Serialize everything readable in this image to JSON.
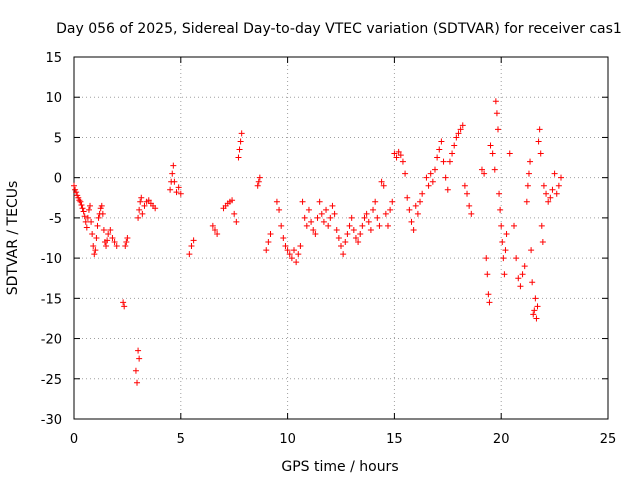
{
  "chart_data": {
    "type": "scatter",
    "title": "Day 056 of 2025, Sidereal Day-to-day VTEC variation (SDTVAR) for receiver cas1",
    "xlabel": "GPS time / hours",
    "ylabel": "SDTVAR / TECUs",
    "xlim": [
      0,
      25
    ],
    "ylim": [
      -30,
      15
    ],
    "xticks": [
      0,
      5,
      10,
      15,
      20,
      25
    ],
    "yticks": [
      -30,
      -25,
      -20,
      -15,
      -10,
      -5,
      0,
      5,
      10,
      15
    ],
    "grid": true,
    "marker": "plus",
    "color": "#ff0000",
    "series": [
      {
        "name": "SDTVAR",
        "points": [
          [
            0.0,
            -1.0
          ],
          [
            0.05,
            -1.5
          ],
          [
            0.1,
            -1.8
          ],
          [
            0.15,
            -2.2
          ],
          [
            0.2,
            -2.5
          ],
          [
            0.25,
            -2.8
          ],
          [
            0.3,
            -3.0
          ],
          [
            0.35,
            -3.4
          ],
          [
            0.4,
            -3.8
          ],
          [
            0.45,
            -4.2
          ],
          [
            0.5,
            -4.8
          ],
          [
            0.55,
            -5.5
          ],
          [
            0.6,
            -6.2
          ],
          [
            0.65,
            -5.0
          ],
          [
            0.7,
            -4.0
          ],
          [
            0.75,
            -3.5
          ],
          [
            0.8,
            -5.5
          ],
          [
            0.85,
            -7.0
          ],
          [
            0.9,
            -8.5
          ],
          [
            0.95,
            -9.5
          ],
          [
            1.0,
            -9.0
          ],
          [
            1.05,
            -7.5
          ],
          [
            1.1,
            -6.0
          ],
          [
            1.15,
            -5.0
          ],
          [
            1.2,
            -4.5
          ],
          [
            1.25,
            -3.8
          ],
          [
            1.3,
            -3.5
          ],
          [
            1.35,
            -4.5
          ],
          [
            1.4,
            -6.5
          ],
          [
            1.45,
            -8.0
          ],
          [
            1.5,
            -8.5
          ],
          [
            1.55,
            -7.8
          ],
          [
            1.6,
            -7.0
          ],
          [
            1.7,
            -6.5
          ],
          [
            1.8,
            -7.5
          ],
          [
            1.9,
            -8.0
          ],
          [
            2.0,
            -8.5
          ],
          [
            2.3,
            -15.5
          ],
          [
            2.35,
            -16.0
          ],
          [
            2.4,
            -8.5
          ],
          [
            2.45,
            -8.0
          ],
          [
            2.5,
            -7.5
          ],
          [
            2.9,
            -24.0
          ],
          [
            2.95,
            -25.5
          ],
          [
            3.0,
            -21.5
          ],
          [
            3.05,
            -22.5
          ],
          [
            3.0,
            -5.0
          ],
          [
            3.05,
            -4.0
          ],
          [
            3.1,
            -3.0
          ],
          [
            3.15,
            -2.5
          ],
          [
            3.2,
            -4.5
          ],
          [
            3.3,
            -3.5
          ],
          [
            3.4,
            -3.0
          ],
          [
            3.5,
            -2.8
          ],
          [
            3.6,
            -3.2
          ],
          [
            3.7,
            -3.5
          ],
          [
            3.8,
            -3.8
          ],
          [
            4.5,
            -1.5
          ],
          [
            4.55,
            -0.5
          ],
          [
            4.6,
            0.5
          ],
          [
            4.65,
            1.5
          ],
          [
            4.7,
            -0.5
          ],
          [
            4.8,
            -1.8
          ],
          [
            4.9,
            -1.2
          ],
          [
            5.0,
            -2.0
          ],
          [
            5.4,
            -9.5
          ],
          [
            5.5,
            -8.5
          ],
          [
            5.6,
            -7.8
          ],
          [
            6.5,
            -6.0
          ],
          [
            6.6,
            -6.5
          ],
          [
            6.7,
            -7.0
          ],
          [
            7.0,
            -3.8
          ],
          [
            7.1,
            -3.5
          ],
          [
            7.2,
            -3.2
          ],
          [
            7.3,
            -3.0
          ],
          [
            7.4,
            -2.8
          ],
          [
            7.5,
            -4.5
          ],
          [
            7.6,
            -5.5
          ],
          [
            7.7,
            2.5
          ],
          [
            7.75,
            3.5
          ],
          [
            7.8,
            4.5
          ],
          [
            7.85,
            5.5
          ],
          [
            8.6,
            -1.0
          ],
          [
            8.65,
            -0.5
          ],
          [
            8.7,
            0.0
          ],
          [
            9.0,
            -9.0
          ],
          [
            9.1,
            -8.0
          ],
          [
            9.2,
            -7.0
          ],
          [
            9.5,
            -3.0
          ],
          [
            9.6,
            -4.0
          ],
          [
            9.7,
            -6.0
          ],
          [
            9.8,
            -7.5
          ],
          [
            9.9,
            -8.5
          ],
          [
            10.0,
            -9.0
          ],
          [
            10.1,
            -9.5
          ],
          [
            10.2,
            -10.0
          ],
          [
            10.3,
            -9.0
          ],
          [
            10.4,
            -10.5
          ],
          [
            10.5,
            -9.5
          ],
          [
            10.6,
            -8.5
          ],
          [
            10.7,
            -3.0
          ],
          [
            10.8,
            -5.0
          ],
          [
            10.9,
            -6.0
          ],
          [
            11.0,
            -4.0
          ],
          [
            11.1,
            -5.5
          ],
          [
            11.2,
            -6.5
          ],
          [
            11.3,
            -7.0
          ],
          [
            11.4,
            -5.0
          ],
          [
            11.5,
            -3.0
          ],
          [
            11.6,
            -4.5
          ],
          [
            11.7,
            -5.5
          ],
          [
            11.8,
            -4.0
          ],
          [
            11.9,
            -6.0
          ],
          [
            12.0,
            -5.0
          ],
          [
            12.1,
            -3.5
          ],
          [
            12.2,
            -4.5
          ],
          [
            12.3,
            -6.5
          ],
          [
            12.4,
            -7.5
          ],
          [
            12.5,
            -8.5
          ],
          [
            12.6,
            -9.5
          ],
          [
            12.7,
            -8.0
          ],
          [
            12.8,
            -7.0
          ],
          [
            12.9,
            -6.0
          ],
          [
            13.0,
            -5.0
          ],
          [
            13.1,
            -6.5
          ],
          [
            13.2,
            -7.5
          ],
          [
            13.3,
            -8.0
          ],
          [
            13.4,
            -7.0
          ],
          [
            13.5,
            -6.0
          ],
          [
            13.6,
            -5.0
          ],
          [
            13.7,
            -4.5
          ],
          [
            13.8,
            -5.5
          ],
          [
            13.9,
            -6.5
          ],
          [
            14.0,
            -4.0
          ],
          [
            14.1,
            -3.0
          ],
          [
            14.2,
            -5.0
          ],
          [
            14.3,
            -6.0
          ],
          [
            14.4,
            -0.5
          ],
          [
            14.5,
            -1.0
          ],
          [
            14.6,
            -4.5
          ],
          [
            14.7,
            -6.0
          ],
          [
            14.8,
            -4.0
          ],
          [
            14.9,
            -3.0
          ],
          [
            15.0,
            3.0
          ],
          [
            15.1,
            2.5
          ],
          [
            15.2,
            3.2
          ],
          [
            15.3,
            2.8
          ],
          [
            15.4,
            2.0
          ],
          [
            15.5,
            0.5
          ],
          [
            15.6,
            -2.5
          ],
          [
            15.7,
            -4.0
          ],
          [
            15.8,
            -5.5
          ],
          [
            15.9,
            -6.5
          ],
          [
            16.0,
            -3.5
          ],
          [
            16.1,
            -4.5
          ],
          [
            16.2,
            -3.0
          ],
          [
            16.3,
            -2.0
          ],
          [
            16.5,
            0.0
          ],
          [
            16.6,
            -1.0
          ],
          [
            16.7,
            0.5
          ],
          [
            16.8,
            -0.5
          ],
          [
            16.9,
            1.0
          ],
          [
            17.0,
            2.5
          ],
          [
            17.1,
            3.5
          ],
          [
            17.2,
            4.5
          ],
          [
            17.3,
            2.0
          ],
          [
            17.4,
            0.0
          ],
          [
            17.5,
            -1.5
          ],
          [
            17.6,
            2.0
          ],
          [
            17.7,
            3.0
          ],
          [
            17.8,
            4.0
          ],
          [
            17.9,
            5.0
          ],
          [
            18.0,
            5.5
          ],
          [
            18.1,
            6.0
          ],
          [
            18.2,
            6.5
          ],
          [
            18.3,
            -1.0
          ],
          [
            18.4,
            -2.0
          ],
          [
            18.5,
            -3.5
          ],
          [
            18.6,
            -4.5
          ],
          [
            19.1,
            1.0
          ],
          [
            19.2,
            0.5
          ],
          [
            19.3,
            -10.0
          ],
          [
            19.35,
            -12.0
          ],
          [
            19.4,
            -14.5
          ],
          [
            19.45,
            -15.5
          ],
          [
            19.5,
            4.0
          ],
          [
            19.6,
            3.0
          ],
          [
            19.7,
            1.0
          ],
          [
            19.75,
            9.5
          ],
          [
            19.8,
            8.0
          ],
          [
            19.85,
            6.0
          ],
          [
            19.9,
            -2.0
          ],
          [
            19.95,
            -4.0
          ],
          [
            20.0,
            -6.0
          ],
          [
            20.05,
            -8.0
          ],
          [
            20.1,
            -10.0
          ],
          [
            20.15,
            -12.0
          ],
          [
            20.2,
            -9.0
          ],
          [
            20.25,
            -7.0
          ],
          [
            20.4,
            3.0
          ],
          [
            20.6,
            -6.0
          ],
          [
            20.7,
            -10.0
          ],
          [
            20.8,
            -12.5
          ],
          [
            20.9,
            -13.5
          ],
          [
            21.0,
            -12.0
          ],
          [
            21.1,
            -11.0
          ],
          [
            21.2,
            -3.0
          ],
          [
            21.25,
            -1.0
          ],
          [
            21.3,
            0.5
          ],
          [
            21.35,
            2.0
          ],
          [
            21.4,
            -9.0
          ],
          [
            21.45,
            -13.0
          ],
          [
            21.5,
            -17.0
          ],
          [
            21.55,
            -16.5
          ],
          [
            21.6,
            -15.0
          ],
          [
            21.65,
            -17.5
          ],
          [
            21.7,
            -16.0
          ],
          [
            21.75,
            4.5
          ],
          [
            21.8,
            6.0
          ],
          [
            21.85,
            3.0
          ],
          [
            21.9,
            -6.0
          ],
          [
            21.95,
            -8.0
          ],
          [
            22.0,
            -1.0
          ],
          [
            22.1,
            -2.0
          ],
          [
            22.2,
            -3.0
          ],
          [
            22.3,
            -2.5
          ],
          [
            22.4,
            -1.5
          ],
          [
            22.5,
            0.5
          ],
          [
            22.6,
            -2.0
          ],
          [
            22.7,
            -1.0
          ],
          [
            22.8,
            0.0
          ]
        ]
      }
    ]
  }
}
